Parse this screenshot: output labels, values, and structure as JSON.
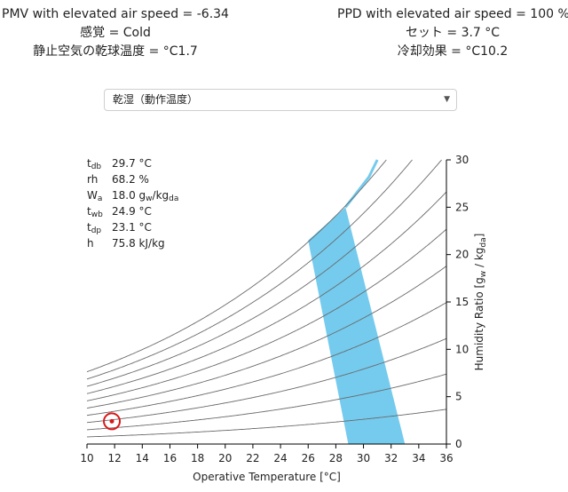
{
  "header": {
    "left": [
      "PMV with elevated air speed = -6.34",
      "感覚 = Cold",
      "静止空気の乾球温度 = °C1.7"
    ],
    "right": [
      "PPD with elevated air speed = 100 %",
      "セット = 3.7 °C",
      "冷却効果 = °C10.2"
    ]
  },
  "chart_selector": {
    "selected": "乾湿（動作温度）",
    "arrow_icon": "chevron-down-icon"
  },
  "readout": [
    {
      "sym": "t",
      "sub": "db",
      "value": "29.7 °C"
    },
    {
      "sym": "rh",
      "sub": "",
      "value": "68.2 %"
    },
    {
      "sym": "W",
      "sub": "a",
      "value": "18.0 g",
      "unit_sub": "w",
      "unit_tail": "/kg",
      "unit_sub2": "da"
    },
    {
      "sym": "t",
      "sub": "wb",
      "value": "24.9 °C"
    },
    {
      "sym": "t",
      "sub": "dp",
      "value": "23.1 °C"
    },
    {
      "sym": "h",
      "sub": "",
      "value": "75.8 kJ/kg"
    }
  ],
  "chart_data": {
    "type": "psychrometric",
    "xlabel": "Operative Temperature [°C]",
    "ylabel_parts": {
      "main": "Humidity Ratio [g",
      "sub1": "w",
      "mid": " / kg",
      "sub2": "da",
      "end": "]"
    },
    "xlim": [
      10,
      36
    ],
    "ylim": [
      0,
      30
    ],
    "x_ticks": [
      10,
      12,
      14,
      16,
      18,
      20,
      22,
      24,
      26,
      28,
      30,
      32,
      34,
      36
    ],
    "y_ticks": [
      0,
      5,
      10,
      15,
      20,
      25,
      30
    ],
    "rh_curves_percent": [
      10,
      20,
      30,
      40,
      50,
      60,
      70,
      80,
      90,
      100
    ],
    "comfort_zone": [
      [
        26.0,
        21.5
      ],
      [
        28.7,
        25.0
      ],
      [
        33.0,
        0
      ],
      [
        28.9,
        0
      ]
    ],
    "saturation_edge": [
      [
        28.7,
        25.0
      ],
      [
        30.4,
        28.2
      ],
      [
        31.0,
        30.0
      ]
    ],
    "current_point": {
      "x": 11.8,
      "y": 2.4
    },
    "zone_color": "#74cbee",
    "point_color": "#d8191c"
  }
}
